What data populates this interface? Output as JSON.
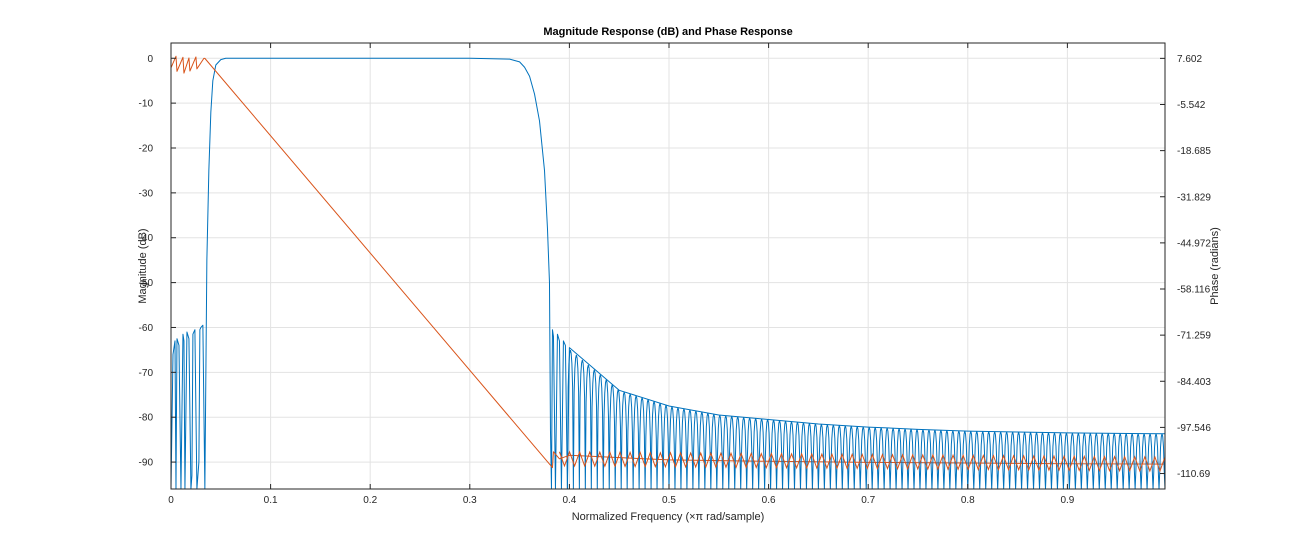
{
  "chart_data": {
    "type": "line",
    "title": "Magnitude Response (dB) and Phase Response",
    "xlabel": "Normalized Frequency (×π rad/sample)",
    "ylabel": "Magnitude (dB)",
    "ylabel_right": "Phase (radians)",
    "xlim": [
      0,
      0.998
    ],
    "ylim": [
      -96,
      3.4
    ],
    "ylim_right": [
      -115.1,
      11.98
    ],
    "grid": true,
    "x_ticks": [
      0,
      0.1,
      0.2,
      0.3,
      0.4,
      0.5,
      0.6,
      0.7,
      0.8,
      0.9
    ],
    "x_tick_labels": [
      "0",
      "0.1",
      "0.2",
      "0.3",
      "0.4",
      "0.5",
      "0.6",
      "0.7",
      "0.8",
      "0.9"
    ],
    "y_ticks": [
      0,
      -10,
      -20,
      -30,
      -40,
      -50,
      -60,
      -70,
      -80,
      -90
    ],
    "y_tick_labels": [
      "0",
      "-10",
      "-20",
      "-30",
      "-40",
      "-50",
      "-60",
      "-70",
      "-80",
      "-90"
    ],
    "y_ticks_right": [
      7.602,
      -5.542,
      -18.685,
      -31.829,
      -44.972,
      -58.116,
      -71.259,
      -84.403,
      -97.546,
      -110.69
    ],
    "y_tick_labels_right": [
      "7.602",
      "-5.542",
      "-18.685",
      "-31.829",
      "-44.972",
      "-58.116",
      "-71.259",
      "-84.403",
      "-97.546",
      "-110.69"
    ],
    "colors": {
      "magnitude": "#0072BD",
      "phase": "#D95319",
      "grid": "#e3e3e3",
      "axes": "#262626"
    },
    "series": [
      {
        "axis": "left",
        "x": [
          0,
          0.002,
          0.004,
          0.005,
          0.006,
          0.008,
          0.01,
          0.012,
          0.013,
          0.014,
          0.016,
          0.018,
          0.02,
          0.021,
          0.022,
          0.024,
          0.026,
          0.028,
          0.029,
          0.03,
          0.032,
          0.034,
          0.036,
          0.038,
          0.04,
          0.042,
          0.045,
          0.05,
          0.055,
          0.06,
          0.065,
          0.07,
          0.1,
          0.2,
          0.3,
          0.34,
          0.35,
          0.355,
          0.36,
          0.365,
          0.37,
          0.375,
          0.378,
          0.38,
          0.381,
          0.382,
          0.383,
          0.384,
          0.386,
          0.388,
          0.39,
          0.392,
          0.394,
          0.396,
          0.398,
          0.4,
          0.45,
          0.5,
          0.55,
          0.6,
          0.65,
          0.7,
          0.75,
          0.8,
          0.85,
          0.9,
          0.95,
          0.998
        ],
        "values": [
          -96,
          -66,
          -63,
          -96,
          -62.5,
          -64,
          -96,
          -61.5,
          -63,
          -96,
          -61,
          -62.5,
          -96,
          -93,
          -61.5,
          -60.5,
          -96,
          -90,
          -60.5,
          -60,
          -59.5,
          -96,
          -45,
          -25,
          -12,
          -5,
          -1.5,
          -0.3,
          0,
          0,
          0,
          0,
          0,
          0,
          0,
          -0.2,
          -0.8,
          -2,
          -4,
          -8,
          -14,
          -25,
          -38,
          -50,
          -83,
          -96,
          -60.5,
          -62,
          -96,
          -61.5,
          -63,
          -96,
          -63,
          -64,
          -96,
          -64.5,
          -74,
          -77.5,
          -79.5,
          -80.5,
          -81.5,
          -82.2,
          -82.7,
          -83.1,
          -83.3,
          -83.5,
          -83.6,
          -83.7
        ],
        "name": ""
      },
      {
        "axis": "right",
        "x": [
          0,
          0.005,
          0.006,
          0.012,
          0.013,
          0.018,
          0.019,
          0.025,
          0.026,
          0.033,
          0.034,
          0.383,
          0.384,
          0.39,
          0.4,
          0.5,
          0.6,
          0.7,
          0.8,
          0.9,
          0.998
        ],
        "values": [
          4.9,
          8.2,
          3.9,
          7.9,
          3.4,
          7.7,
          4.0,
          8.0,
          4.6,
          7.6,
          7.6,
          -109,
          -104.5,
          -106.5,
          -105.5,
          -106.8,
          -107.2,
          -107.5,
          -107.7,
          -107.9,
          -108
        ],
        "name": ""
      }
    ]
  }
}
